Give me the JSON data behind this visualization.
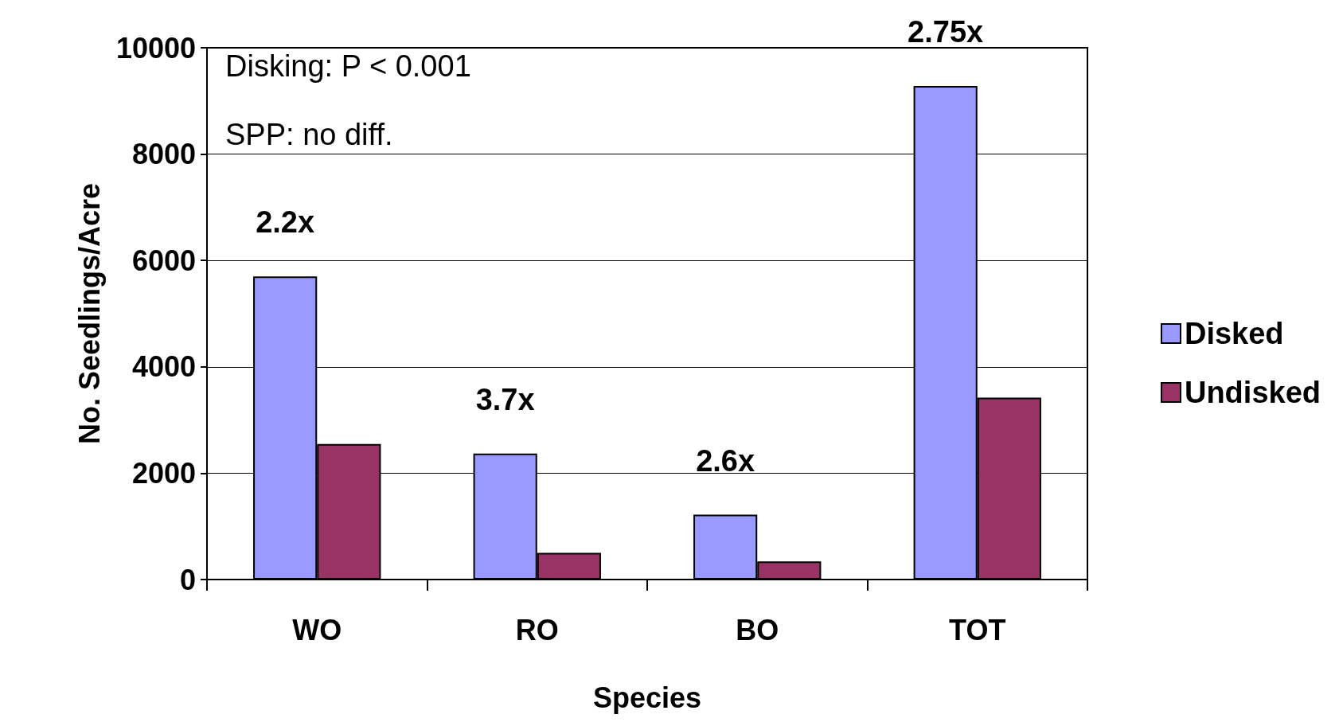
{
  "chart_data": {
    "type": "bar",
    "xlabel": "Species",
    "ylabel": "No. Seedlings/Acre",
    "categories": [
      "WO",
      "RO",
      "BO",
      "TOT"
    ],
    "series": [
      {
        "name": "Disked",
        "color": "#9999ff",
        "values": [
          5700,
          2370,
          1220,
          9280
        ]
      },
      {
        "name": "Undisked",
        "color": "#993366",
        "values": [
          2550,
          500,
          340,
          3420
        ]
      }
    ],
    "ylim": [
      0,
      10000
    ],
    "yticks": [
      0,
      2000,
      4000,
      6000,
      8000,
      10000
    ],
    "grid": "y",
    "legend": "right",
    "annotations": [
      "Disking: P < 0.001",
      "SPP: no diff.",
      "2.2x",
      "3.7x",
      "2.6x",
      "2.75x"
    ]
  }
}
